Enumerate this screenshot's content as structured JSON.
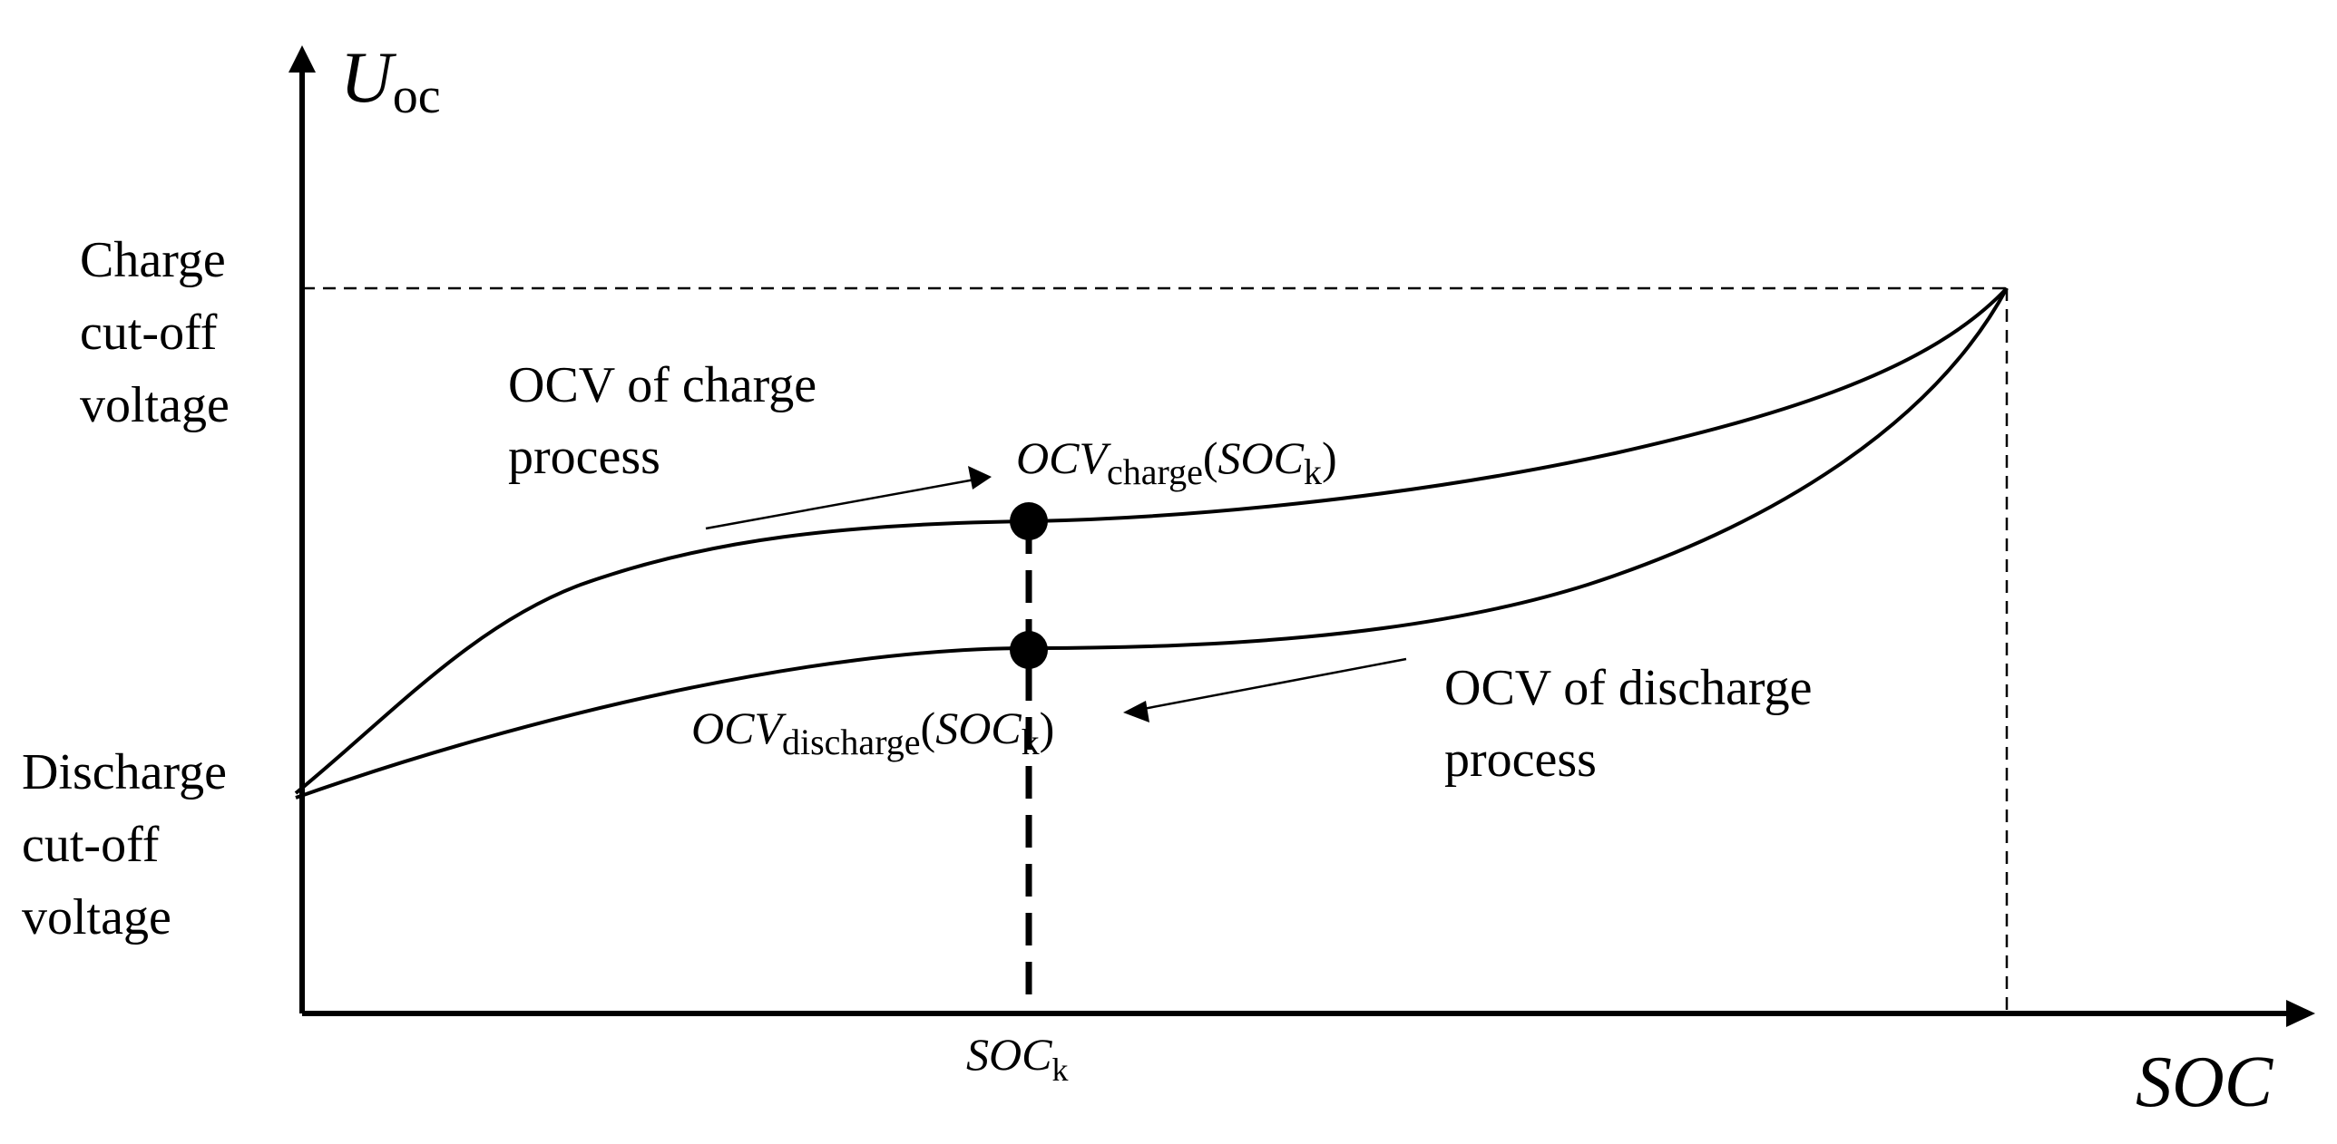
{
  "diagram": {
    "y_axis_label": {
      "main": "U",
      "sub": "oc"
    },
    "x_axis_label": "SOC",
    "charge_cutoff_label": [
      "Charge",
      "cut-off",
      "voltage"
    ],
    "discharge_cutoff_label": [
      "Discharge",
      "cut-off",
      "voltage"
    ],
    "charge_process_label": [
      "OCV of charge",
      "process"
    ],
    "discharge_process_label": [
      "OCV of discharge",
      "process"
    ],
    "point_charge_label": {
      "prefix": "OCV",
      "sub": "charge",
      "arg": "SOC",
      "arg_sub": "k"
    },
    "point_discharge_label": {
      "prefix": "OCV",
      "sub": "discharge",
      "arg": "SOC",
      "arg_sub": "k"
    },
    "soc_k_label": {
      "main": "SOC",
      "sub": "k"
    },
    "line_color": "#000000"
  }
}
